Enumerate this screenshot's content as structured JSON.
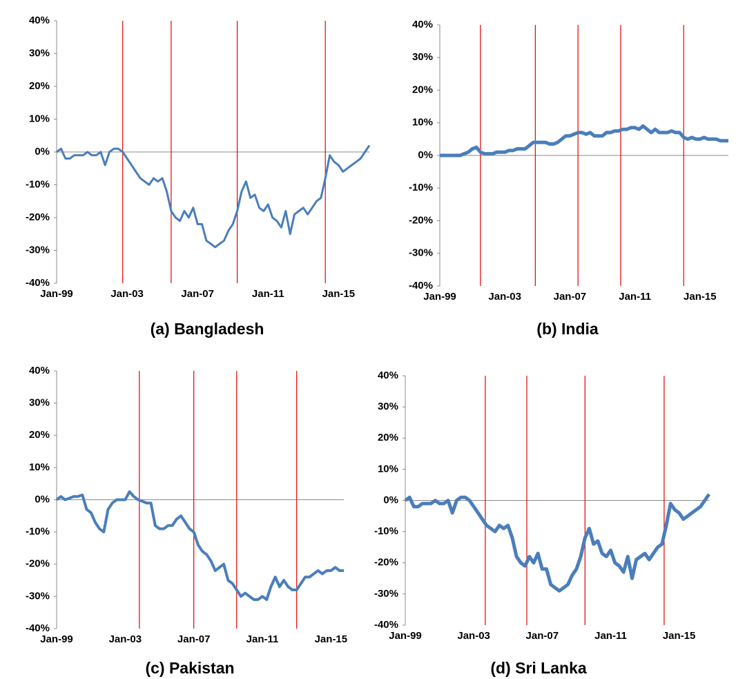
{
  "chart_data": [
    {
      "type": "line",
      "title": "(a) Bangladesh",
      "categories": [
        "Jan-99",
        null,
        null,
        null,
        null,
        null,
        null,
        null,
        null,
        null,
        null,
        null,
        null,
        null,
        null,
        null,
        "Jan-03",
        null,
        null,
        null,
        null,
        null,
        null,
        null,
        null,
        null,
        null,
        null,
        null,
        null,
        null,
        null,
        "Jan-07",
        null,
        null,
        null,
        null,
        null,
        null,
        null,
        null,
        null,
        null,
        null,
        null,
        null,
        null,
        null,
        "Jan-11",
        null,
        null,
        null,
        null,
        null,
        null,
        null,
        null,
        null,
        null,
        null,
        null,
        null,
        null,
        null,
        "Jan-15",
        null,
        null,
        null,
        null,
        null,
        null,
        null
      ],
      "series": [
        {
          "color": "#4a7ebb",
          "values": [
            0,
            1,
            -2,
            -2,
            -1,
            -1,
            -1,
            0,
            -1,
            -1,
            0,
            -4,
            0,
            1,
            1,
            0,
            -2,
            -4,
            -6,
            -8,
            -9,
            -10,
            -8,
            -9,
            -8,
            -12,
            -18,
            -20,
            -21,
            -18,
            -20,
            -17,
            -22,
            -22,
            -27,
            -28,
            -29,
            -28,
            -27,
            -24,
            -22,
            -18,
            -12,
            -9,
            -14,
            -13,
            -17,
            -18,
            -16,
            -20,
            -21,
            -23,
            -18,
            -25,
            -19,
            -18,
            -17,
            -19,
            -17,
            -15,
            -14,
            -8,
            -1,
            -3,
            -4,
            -6,
            -5,
            -4,
            -3,
            -2,
            0,
            2
          ]
        }
      ],
      "event_lines": [
        15,
        26,
        41,
        61
      ],
      "event_color": "#e00000",
      "ylim": [
        -40,
        40
      ],
      "yticks": [
        {
          "value": -40,
          "label": "-40%"
        },
        {
          "value": -30,
          "label": "-30%"
        },
        {
          "value": -20,
          "label": "-20%"
        },
        {
          "value": -10,
          "label": "-10%"
        },
        {
          "value": 0,
          "label": "0%"
        },
        {
          "value": 10,
          "label": "10%"
        },
        {
          "value": 20,
          "label": "20%"
        },
        {
          "value": 30,
          "label": "30%"
        },
        {
          "value": 40,
          "label": "40%"
        }
      ]
    },
    {
      "type": "line",
      "title": "(b) India",
      "categories": [
        "Jan-99",
        null,
        null,
        null,
        null,
        null,
        null,
        null,
        null,
        null,
        null,
        null,
        null,
        null,
        null,
        null,
        "Jan-03",
        null,
        null,
        null,
        null,
        null,
        null,
        null,
        null,
        null,
        null,
        null,
        null,
        null,
        null,
        null,
        "Jan-07",
        null,
        null,
        null,
        null,
        null,
        null,
        null,
        null,
        null,
        null,
        null,
        null,
        null,
        null,
        null,
        "Jan-11",
        null,
        null,
        null,
        null,
        null,
        null,
        null,
        null,
        null,
        null,
        null,
        null,
        null,
        null,
        null,
        "Jan-15",
        null,
        null,
        null,
        null,
        null,
        null,
        null
      ],
      "series": [
        {
          "color": "#4a7ebb",
          "values": [
            0,
            0,
            0,
            0,
            0,
            0,
            0.5,
            1,
            2,
            2.5,
            1,
            0.5,
            0.5,
            0.5,
            1,
            1,
            1,
            1.5,
            1.5,
            2,
            2,
            2,
            3,
            4,
            4,
            4,
            4,
            3.5,
            3.5,
            4,
            5,
            6,
            6,
            6.5,
            7,
            7,
            6.5,
            7,
            6,
            6,
            6,
            7,
            7,
            7.5,
            7.5,
            8,
            8,
            8.5,
            8.5,
            8,
            9,
            8,
            7,
            8,
            7,
            7,
            7,
            7.5,
            7,
            7,
            5.5,
            5,
            5.5,
            5,
            5,
            5.5,
            5,
            5,
            5,
            4.5,
            4.5,
            4.5
          ]
        }
      ],
      "event_lines": [
        10,
        23.5,
        34,
        44.5,
        60
      ],
      "event_color": "#e00000",
      "ylim": [
        -40,
        40
      ],
      "yticks": [
        {
          "value": -40,
          "label": "-40%"
        },
        {
          "value": -30,
          "label": "-30%"
        },
        {
          "value": -20,
          "label": "-20%"
        },
        {
          "value": -10,
          "label": "-10%"
        },
        {
          "value": 0,
          "label": "0%"
        },
        {
          "value": 10,
          "label": "10%"
        },
        {
          "value": 20,
          "label": "20%"
        },
        {
          "value": 30,
          "label": "30%"
        },
        {
          "value": 40,
          "label": "40%"
        }
      ]
    },
    {
      "type": "line",
      "title": "(c) Pakistan",
      "categories": [
        "Jan-99",
        null,
        null,
        null,
        null,
        null,
        null,
        null,
        null,
        null,
        null,
        null,
        null,
        null,
        null,
        null,
        "Jan-03",
        null,
        null,
        null,
        null,
        null,
        null,
        null,
        null,
        null,
        null,
        null,
        null,
        null,
        null,
        null,
        "Jan-07",
        null,
        null,
        null,
        null,
        null,
        null,
        null,
        null,
        null,
        null,
        null,
        null,
        null,
        null,
        null,
        "Jan-11",
        null,
        null,
        null,
        null,
        null,
        null,
        null,
        null,
        null,
        null,
        null,
        null,
        null,
        null,
        null,
        "Jan-15",
        null,
        null,
        null
      ],
      "series": [
        {
          "color": "#4a7ebb",
          "values": [
            0,
            1,
            0,
            0.5,
            1,
            1,
            1.5,
            -3,
            -4,
            -7,
            -9,
            -10,
            -3,
            -1,
            0,
            0,
            0,
            2.5,
            1,
            0,
            -0.5,
            -1,
            -1,
            -8,
            -9,
            -9,
            -8,
            -8,
            -6,
            -5,
            -7,
            -9,
            -10,
            -14,
            -16,
            -17,
            -19,
            -22,
            -21,
            -20,
            -25,
            -26,
            -28,
            -30,
            -29,
            -30,
            -31,
            -31,
            -30,
            -31,
            -27,
            -24,
            -27,
            -25,
            -27,
            -28,
            -28,
            -26,
            -24,
            -24,
            -23,
            -22,
            -23,
            -22,
            -22,
            -21,
            -22,
            -22
          ]
        }
      ],
      "event_lines": [
        19.3,
        32,
        42,
        56
      ],
      "event_color": "#e00000",
      "ylim": [
        -40,
        40
      ],
      "yticks": [
        {
          "value": -40,
          "label": "-40%"
        },
        {
          "value": -30,
          "label": "-30%"
        },
        {
          "value": -20,
          "label": "-20%"
        },
        {
          "value": -10,
          "label": "-10%"
        },
        {
          "value": 0,
          "label": "0%"
        },
        {
          "value": 10,
          "label": "10%"
        },
        {
          "value": 20,
          "label": "20%"
        },
        {
          "value": 30,
          "label": "30%"
        },
        {
          "value": 40,
          "label": "40%"
        }
      ]
    },
    {
      "type": "line",
      "title": "(d) Sri Lanka",
      "categories": [
        "Jan-99",
        null,
        null,
        null,
        null,
        null,
        null,
        null,
        null,
        null,
        null,
        null,
        null,
        null,
        null,
        null,
        "Jan-03",
        null,
        null,
        null,
        null,
        null,
        null,
        null,
        null,
        null,
        null,
        null,
        null,
        null,
        null,
        null,
        "Jan-07",
        null,
        null,
        null,
        null,
        null,
        null,
        null,
        null,
        null,
        null,
        null,
        null,
        null,
        null,
        null,
        "Jan-11",
        null,
        null,
        null,
        null,
        null,
        null,
        null,
        null,
        null,
        null,
        null,
        null,
        null,
        null,
        null,
        "Jan-15",
        null,
        null,
        null,
        null,
        null,
        null,
        null
      ],
      "series": [
        {
          "color": "#4a7ebb",
          "values": [
            0,
            1,
            -2,
            -2,
            -1,
            -1,
            -1,
            0,
            -1,
            -1,
            0,
            -4,
            0,
            1,
            1,
            0,
            -2,
            -4,
            -6,
            -8,
            -9,
            -10,
            -8,
            -9,
            -8,
            -12,
            -18,
            -20,
            -21,
            -18,
            -20,
            -17,
            -22,
            -22,
            -27,
            -28,
            -29,
            -28,
            -27,
            -24,
            -22,
            -18,
            -12,
            -9,
            -14,
            -13,
            -17,
            -18,
            -16,
            -20,
            -21,
            -23,
            -18,
            -25,
            -19,
            -18,
            -17,
            -19,
            -17,
            -15,
            -14,
            -8,
            -1,
            -3,
            -4,
            -6,
            -5,
            -4,
            -3,
            -2,
            0,
            2
          ]
        }
      ],
      "event_lines": [
        18.7,
        28.4,
        42,
        60.5
      ],
      "event_color": "#e00000",
      "ylim": [
        -40,
        40
      ],
      "yticks": [
        {
          "value": -40,
          "label": "-40%"
        },
        {
          "value": -30,
          "label": "-30%"
        },
        {
          "value": -20,
          "label": "-20%"
        },
        {
          "value": -10,
          "label": "-10%"
        },
        {
          "value": 0,
          "label": "0%"
        },
        {
          "value": 10,
          "label": "10%"
        },
        {
          "value": 20,
          "label": "20%"
        },
        {
          "value": 30,
          "label": "30%"
        },
        {
          "value": 40,
          "label": "40%"
        }
      ]
    }
  ]
}
